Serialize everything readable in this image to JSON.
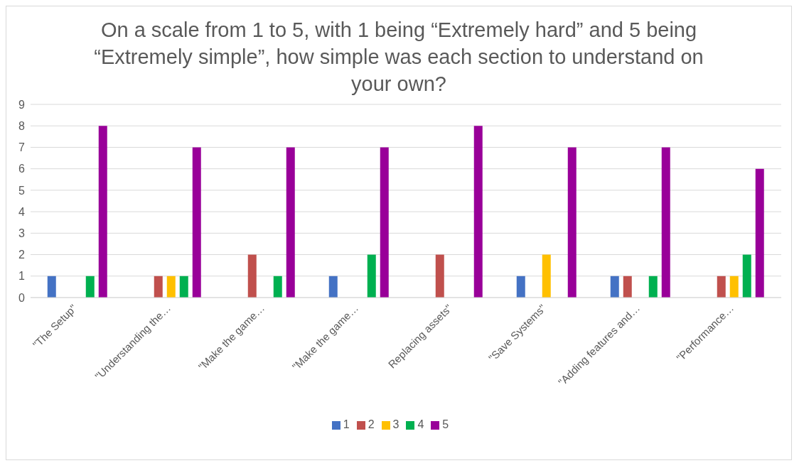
{
  "chart_data": {
    "type": "bar",
    "title": "On a scale from 1 to 5, with 1 being “Extremely hard” and 5 being “Extremely simple”, how simple was each section to understand on your own?",
    "categories": [
      "\"The Setup\"",
      "\"Understanding the…",
      "\"Make the game…",
      "\"Make the game…",
      "Replacing assets\"",
      "\"Save Systems\"",
      "\"Adding features and…",
      "\"Performance…"
    ],
    "series": [
      {
        "name": "1",
        "color": "#4472c4",
        "values": [
          1,
          0,
          0,
          1,
          0,
          1,
          1,
          0
        ]
      },
      {
        "name": "2",
        "color": "#c0504d",
        "values": [
          0,
          1,
          2,
          0,
          2,
          0,
          1,
          1
        ]
      },
      {
        "name": "3",
        "color": "#ffc000",
        "values": [
          0,
          1,
          0,
          0,
          0,
          2,
          0,
          1
        ]
      },
      {
        "name": "4",
        "color": "#00b050",
        "values": [
          1,
          1,
          1,
          2,
          0,
          0,
          1,
          2
        ]
      },
      {
        "name": "5",
        "color": "#990099",
        "values": [
          8,
          7,
          7,
          7,
          8,
          7,
          7,
          6
        ]
      }
    ],
    "ylim": [
      0,
      9
    ],
    "yticks": [
      0,
      1,
      2,
      3,
      4,
      5,
      6,
      7,
      8,
      9
    ],
    "grid": "y",
    "legend": "bottom"
  }
}
